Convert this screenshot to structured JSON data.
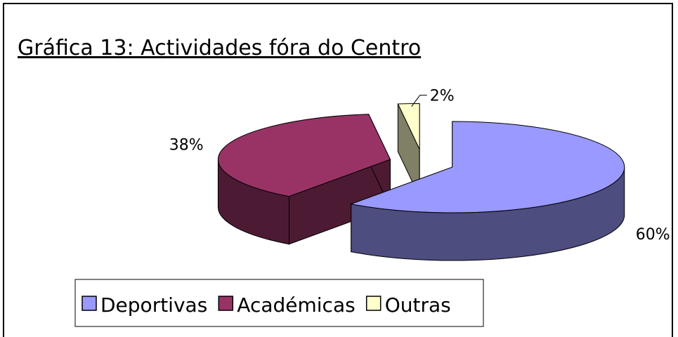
{
  "chart_data": {
    "type": "pie",
    "title": "Gráfica 13: Actividades fóra do Centro",
    "categories": [
      "Deportivas",
      "Académicas",
      "Outras"
    ],
    "values": [
      60,
      38,
      2
    ],
    "value_labels": [
      "60%",
      "38%",
      "2%"
    ],
    "colors": [
      "#9999ff",
      "#993366",
      "#ffffcc"
    ],
    "legend": "bottom"
  }
}
